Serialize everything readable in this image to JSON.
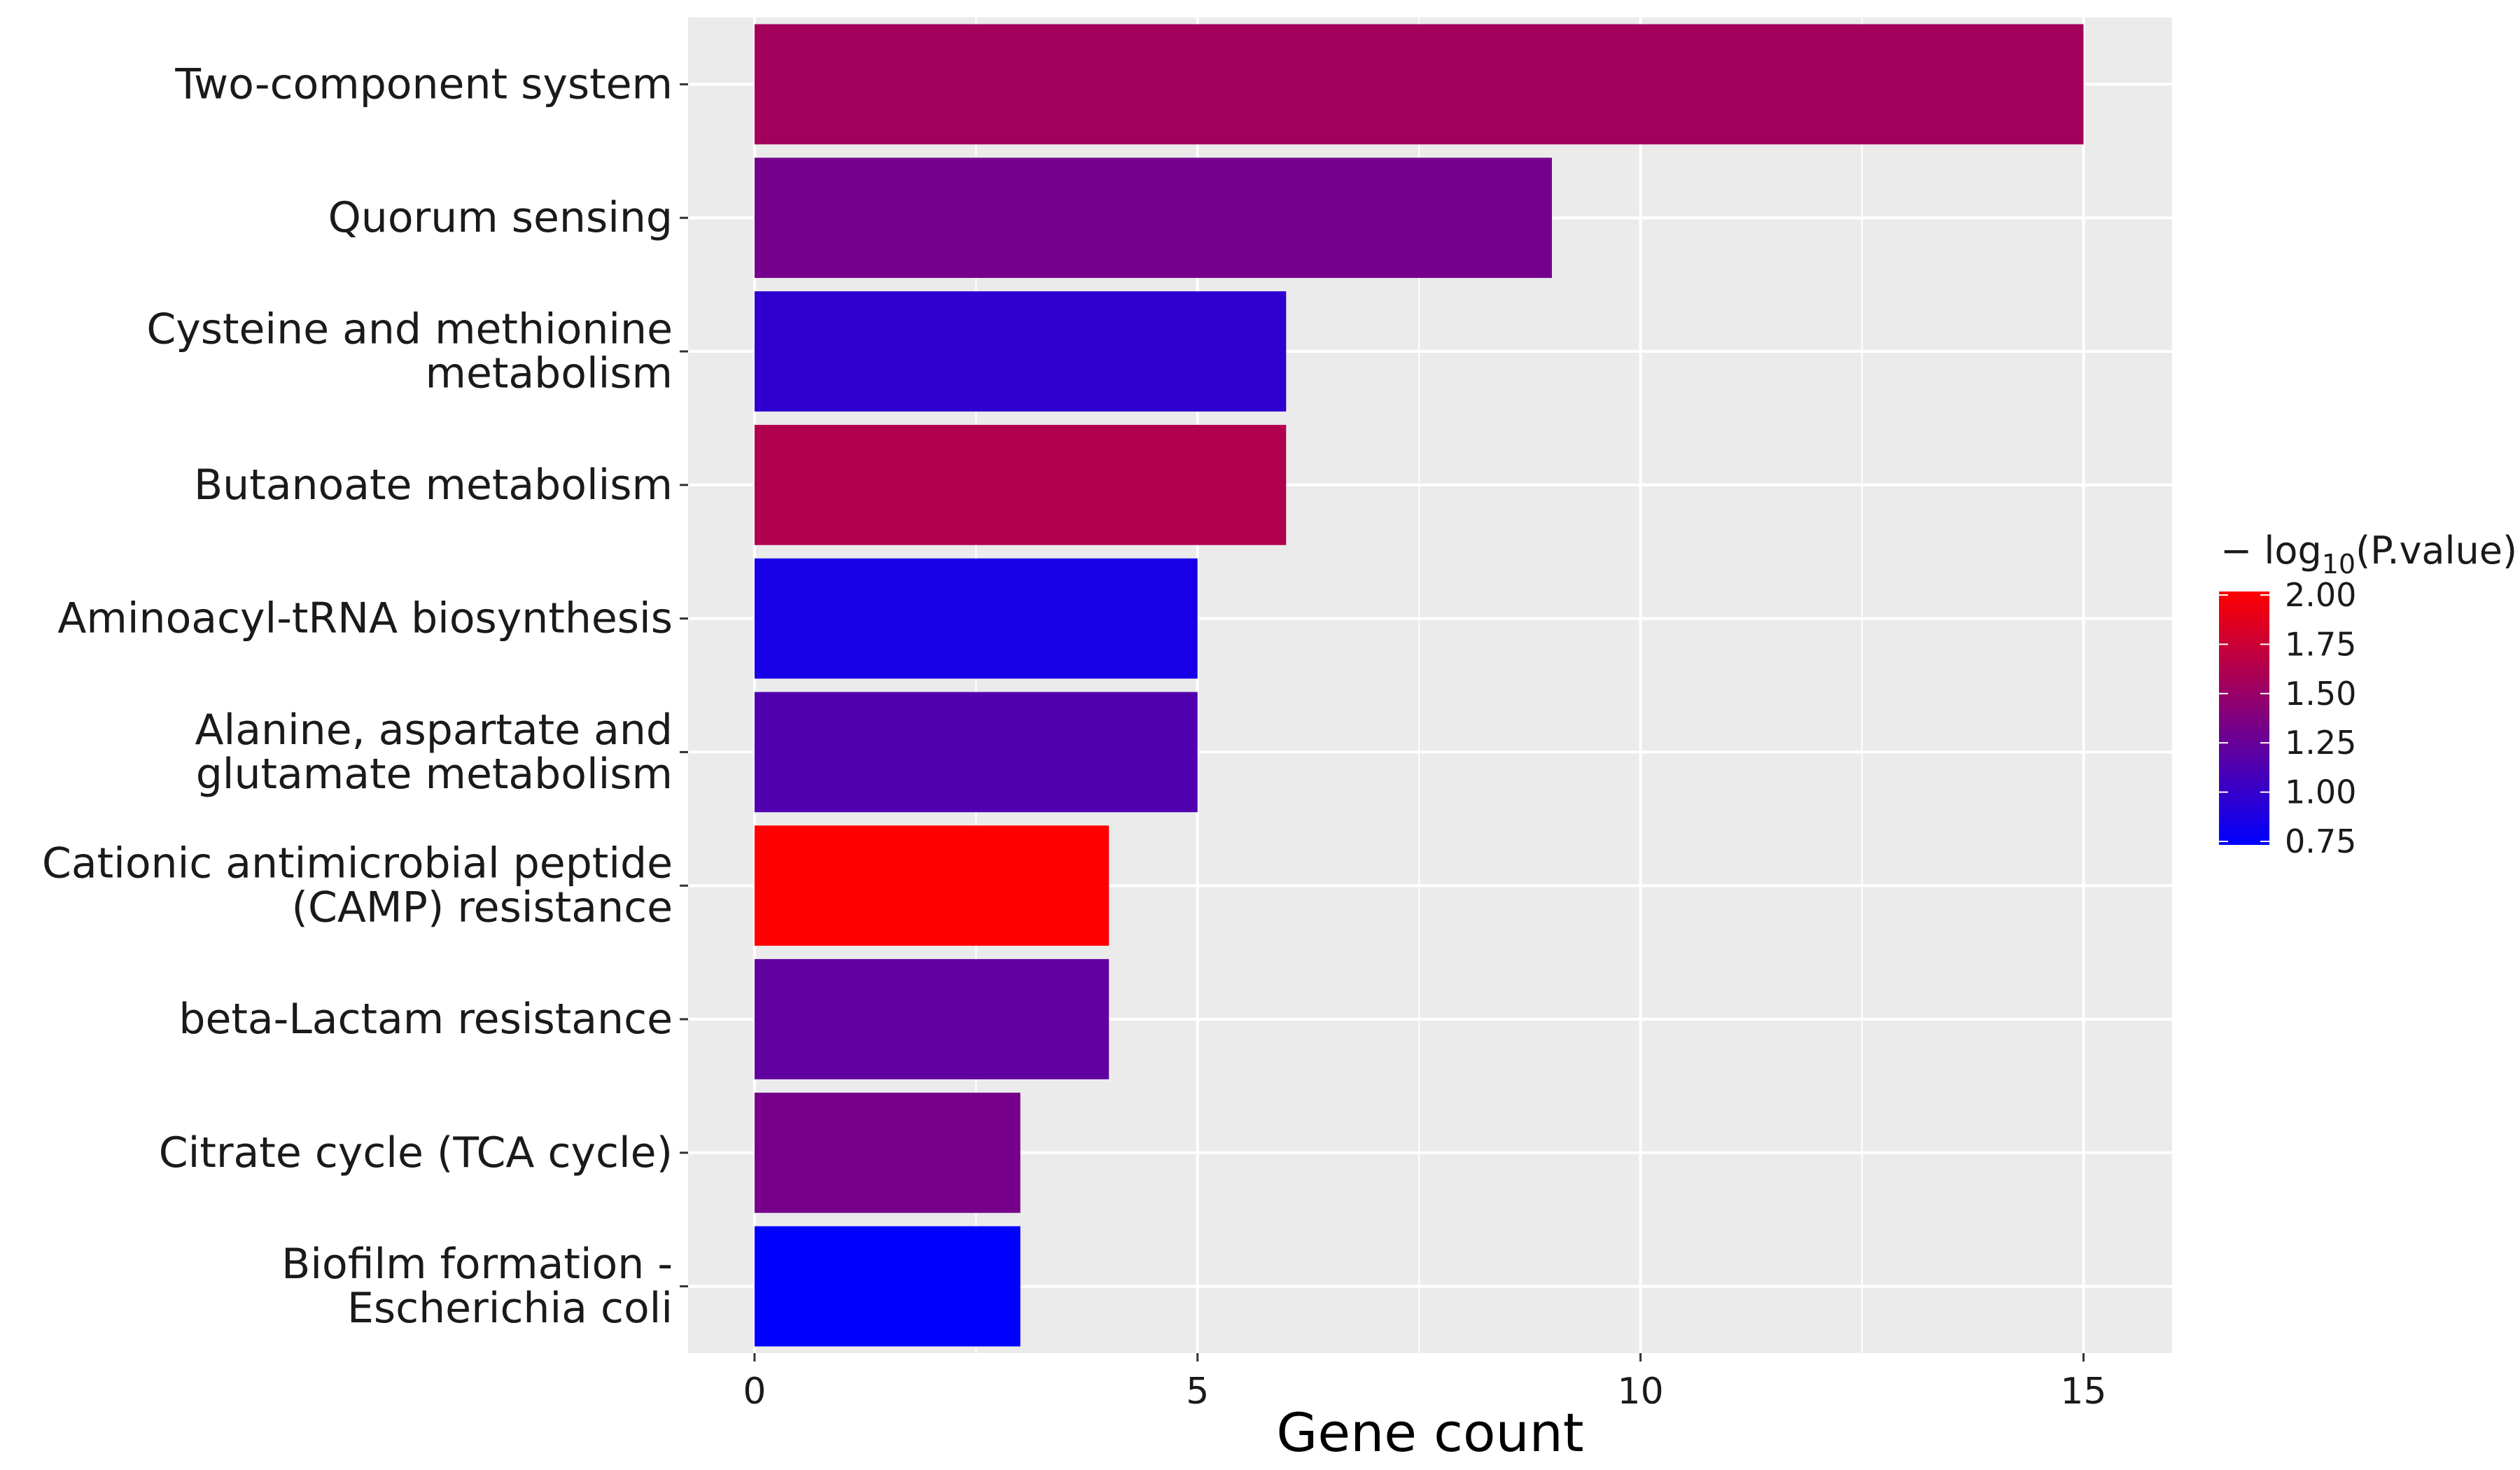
{
  "chart_data": {
    "type": "bar",
    "orientation": "horizontal",
    "categories": [
      [
        "Two-component system"
      ],
      [
        "Quorum sensing"
      ],
      [
        "Cysteine and methionine",
        "metabolism"
      ],
      [
        "Butanoate metabolism"
      ],
      [
        "Aminoacyl-tRNA biosynthesis"
      ],
      [
        "Alanine, aspartate and",
        "glutamate metabolism"
      ],
      [
        "Cationic antimicrobial peptide",
        "(CAMP) resistance"
      ],
      [
        "beta-Lactam resistance"
      ],
      [
        "Citrate cycle (TCA cycle)"
      ],
      [
        "Biofilm formation -",
        "Escherichia coli"
      ]
    ],
    "values": [
      15,
      9,
      6,
      6,
      5,
      5,
      4,
      4,
      3,
      3
    ],
    "color_values": [
      1.55,
      1.32,
      0.98,
      1.62,
      0.87,
      1.14,
      2.0,
      1.22,
      1.33,
      0.75
    ],
    "xlabel": "Gene count",
    "ylabel": "",
    "xlim": [
      -0.75,
      16
    ],
    "xticks": [
      "0",
      "5",
      "10",
      "15"
    ],
    "grid": true,
    "legend": {
      "title_prefix": "− log",
      "title_sub": "10",
      "title_suffix": "(P.value)",
      "ticks": [
        "2.00",
        "1.75",
        "1.50",
        "1.25",
        "1.00",
        "0.75"
      ],
      "range": [
        0.75,
        2.0
      ],
      "low_color": "#0000ff",
      "high_color": "#ff0000",
      "position": "right"
    },
    "panel_color": "#ebebeb",
    "grid_color": "#ffffff"
  }
}
